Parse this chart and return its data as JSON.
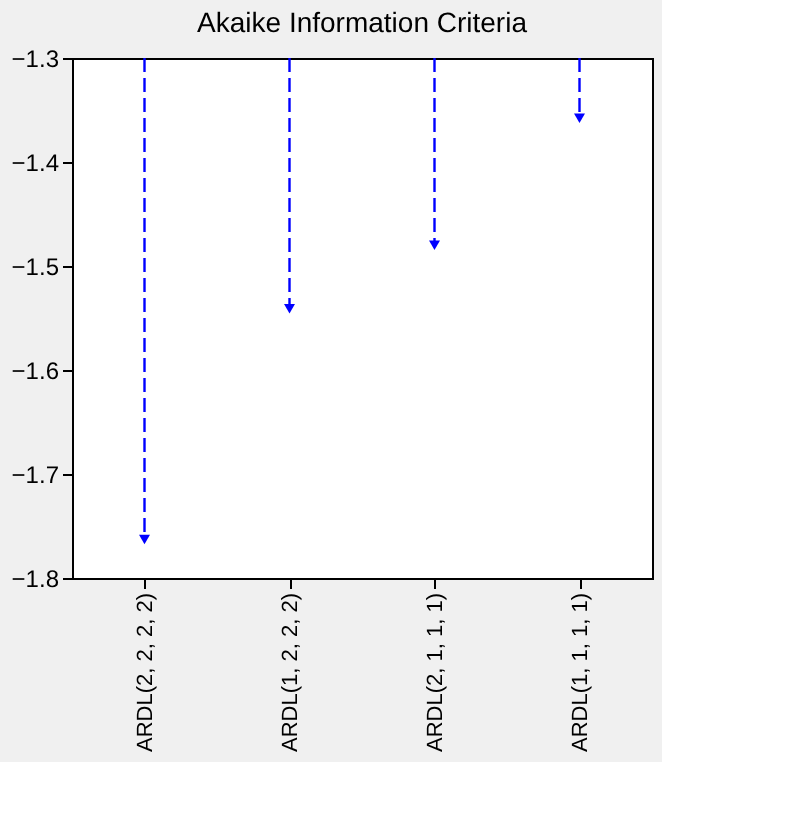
{
  "chart_data": {
    "type": "lollipop",
    "title": "Akaike Information Criteria",
    "categories": [
      "ARDL(2, 2, 2, 2)",
      "ARDL(1, 2, 2, 2)",
      "ARDL(2, 1, 1, 1)",
      "ARDL(1, 1, 1, 1)"
    ],
    "values": [
      -1.763,
      -1.541,
      -1.48,
      -1.358
    ],
    "color": "#0000ff",
    "ylim": [
      -1.8,
      -1.3
    ],
    "yticks": [
      -1.8,
      -1.7,
      -1.6,
      -1.5,
      -1.4,
      -1.3
    ],
    "grid": false,
    "marker": "triangle",
    "line_style": "dashed"
  }
}
